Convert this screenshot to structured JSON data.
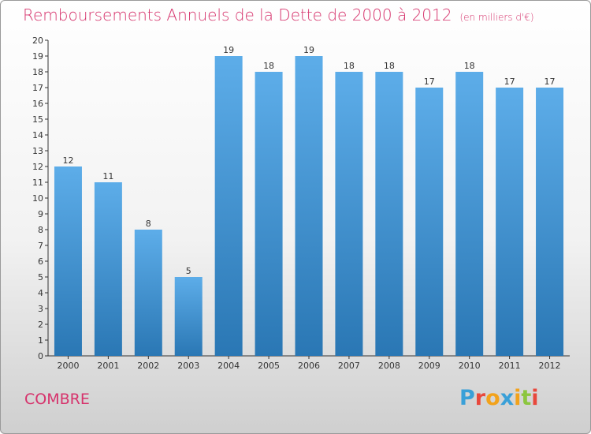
{
  "header": {
    "title": "Remboursements Annuels de la Dette de 2000 à 2012",
    "unit": "(en milliers d'€)"
  },
  "commune": "COMBRE",
  "logo": {
    "letters": [
      "P",
      "r",
      "o",
      "x",
      "i",
      "t",
      "i"
    ],
    "colors": [
      "#3aa0d8",
      "#e8483c",
      "#f2a21b",
      "#3aa0d8",
      "#f2a21b",
      "#8cc63f",
      "#e8483c"
    ]
  },
  "colors": {
    "bar_light": "#5dade9",
    "bar_dark": "#2a77b4",
    "accent": "#d6336c"
  },
  "chart_data": {
    "type": "bar",
    "title": "Remboursements Annuels de la Dette de 2000 à 2012",
    "xlabel": "",
    "ylabel": "",
    "ylim": [
      0,
      20
    ],
    "grid": false,
    "categories": [
      "2000",
      "2001",
      "2002",
      "2003",
      "2004",
      "2005",
      "2006",
      "2007",
      "2008",
      "2009",
      "2010",
      "2011",
      "2012"
    ],
    "values": [
      12,
      11,
      8,
      5,
      19,
      18,
      19,
      18,
      18,
      17,
      18,
      17,
      17
    ],
    "y_ticks": [
      0,
      1,
      2,
      3,
      4,
      5,
      6,
      7,
      8,
      9,
      10,
      11,
      12,
      13,
      14,
      15,
      16,
      17,
      18,
      19,
      20
    ]
  }
}
